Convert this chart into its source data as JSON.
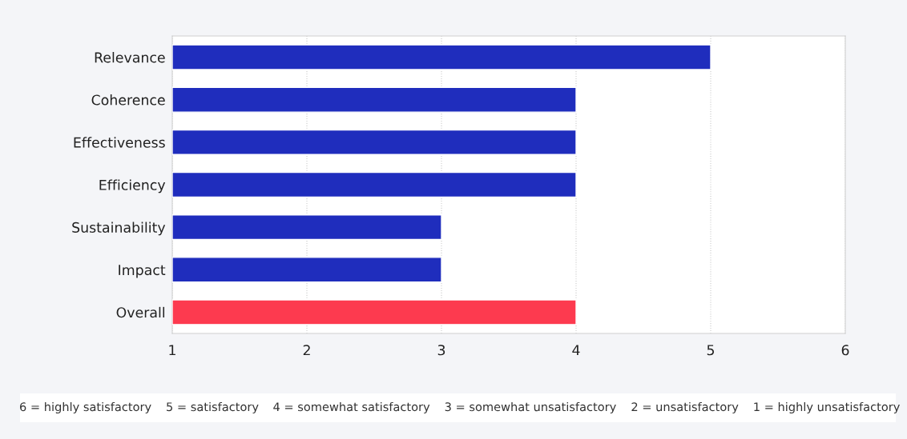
{
  "chart_data": {
    "type": "bar",
    "orientation": "horizontal",
    "categories": [
      "Relevance",
      "Coherence",
      "Effectiveness",
      "Efficiency",
      "Sustainability",
      "Impact",
      "Overall"
    ],
    "values": [
      5,
      4,
      4,
      4,
      3,
      3,
      4
    ],
    "colors": [
      "#1f2dbd",
      "#1f2dbd",
      "#1f2dbd",
      "#1f2dbd",
      "#1f2dbd",
      "#1f2dbd",
      "#fd3a4f"
    ],
    "xlim": [
      1,
      6
    ],
    "xticks": [
      1,
      2,
      3,
      4,
      5,
      6
    ],
    "grid": "x",
    "legend": false,
    "annotations": [
      "6 = highly satisfactory",
      "5 = satisfactory",
      "4 = somewhat satisfactory",
      "3 = somewhat unsatisfactory",
      "2 = unsatisfactory",
      "1 = highly unsatisfactory"
    ]
  }
}
